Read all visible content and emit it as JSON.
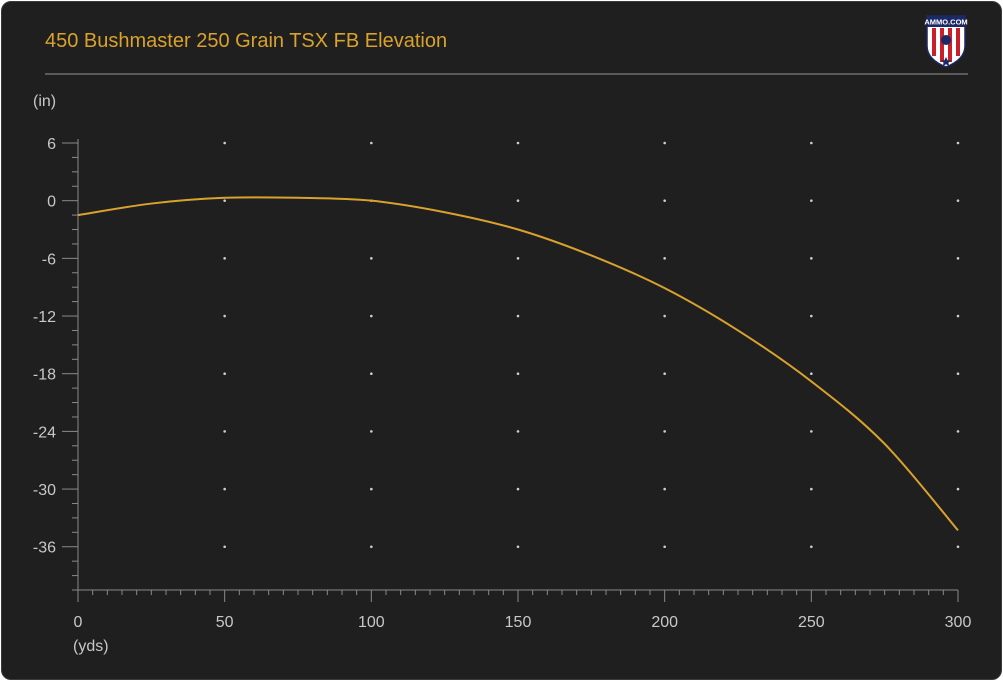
{
  "header": {
    "title": "450 Bushmaster 250 Grain TSX FB Elevation",
    "logo_text": "AMMO.COM"
  },
  "colors": {
    "background": "#1f1f1f",
    "title": "#d9a22c",
    "line": "#d9a22c",
    "axis": "#8a8a8a",
    "text": "#c8c8c8",
    "grid_dot": "#cfcfcf"
  },
  "chart_data": {
    "type": "line",
    "title": "450 Bushmaster 250 Grain TSX FB Elevation",
    "xlabel": "(yds)",
    "ylabel": "(in)",
    "xlim": [
      0,
      300
    ],
    "ylim": [
      -40.5,
      6
    ],
    "x_ticks": [
      0,
      50,
      100,
      150,
      200,
      250,
      300
    ],
    "y_ticks": [
      6,
      0,
      -6,
      -12,
      -18,
      -24,
      -30,
      -36
    ],
    "grid": "dots",
    "series": [
      {
        "x": [
          0,
          25,
          50,
          75,
          100,
          125,
          150,
          175,
          200,
          225,
          250,
          275,
          300
        ],
        "values": [
          -1.5,
          -0.3,
          0.3,
          0.3,
          0.0,
          -1.2,
          -3.0,
          -5.7,
          -9.1,
          -13.5,
          -18.8,
          -25.3,
          -34.3
        ]
      }
    ]
  }
}
